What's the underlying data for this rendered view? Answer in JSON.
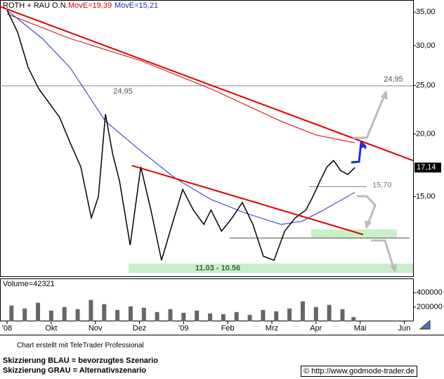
{
  "chart_data": {
    "type": "line",
    "title": "ROTH + RAU O.N.",
    "log_scale": true,
    "color": "#000000",
    "x": [
      0,
      0.24,
      0.48,
      0.72,
      0.96,
      1.19,
      1.43,
      1.67,
      1.91,
      2.07,
      2.23,
      2.39,
      2.55,
      2.79,
      3.03,
      3.26,
      3.5,
      3.74,
      3.98,
      4.22,
      4.46,
      4.62,
      4.86,
      5.1,
      5.33,
      5.57,
      5.81,
      6.05,
      6.29,
      6.53,
      6.77,
      6.93,
      7.09,
      7.25,
      7.4,
      7.56,
      7.72,
      7.88
    ],
    "values": [
      35.3,
      31.9,
      27.1,
      24.6,
      23.0,
      21.6,
      19.2,
      17.2,
      13.6,
      15.0,
      21.9,
      18.3,
      16.1,
      12.0,
      17.2,
      14.1,
      11.2,
      13.2,
      15.5,
      14.1,
      13.2,
      14.1,
      12.8,
      13.6,
      14.6,
      13.2,
      11.4,
      11.2,
      12.8,
      13.6,
      14.1,
      15.0,
      16.1,
      17.2,
      17.7,
      16.9,
      16.6,
      17.14
    ],
    "series": [
      {
        "name": "MovE=19,39",
        "color": "#d40000",
        "x": [
          0,
          1.43,
          3.03,
          4.62,
          6.21,
          7.01,
          7.88
        ],
        "values": [
          34.7,
          31.0,
          28.0,
          24.6,
          21.2,
          19.9,
          19.2
        ]
      },
      {
        "name": "MovE=15,21",
        "color": "#1c2fc0",
        "x": [
          0,
          0.8,
          1.43,
          2.23,
          3.03,
          3.82,
          4.62,
          5.41,
          6.21,
          6.69,
          7.17,
          7.88
        ],
        "values": [
          35.3,
          31.0,
          27.1,
          21.2,
          18.5,
          16.3,
          14.8,
          13.9,
          13.2,
          13.4,
          14.1,
          15.3
        ]
      }
    ],
    "xlim": [
      -0.16,
      9.2
    ],
    "xticks": [
      {
        "value": 0,
        "label": "'08"
      },
      {
        "value": 1,
        "label": "Okt"
      },
      {
        "value": 2,
        "label": "Nov"
      },
      {
        "value": 3,
        "label": "Dez"
      },
      {
        "value": 4,
        "label": "'09"
      },
      {
        "value": 5,
        "label": "Feb"
      },
      {
        "value": 6,
        "label": "Mrz"
      },
      {
        "value": 7,
        "label": "Apr"
      },
      {
        "value": 8,
        "label": "Mai"
      },
      {
        "value": 9,
        "label": "Jun"
      }
    ],
    "ylim": [
      10.4,
      37
    ],
    "yticks": [
      {
        "value": 15,
        "label": "15,00"
      },
      {
        "value": 20,
        "label": "20,00"
      },
      {
        "value": 25,
        "label": "25,00"
      },
      {
        "value": 30,
        "label": "30,00"
      },
      {
        "value": 35,
        "label": "35,00"
      }
    ],
    "last_price": {
      "value": 17.14,
      "label": "17,14"
    },
    "levels": [
      {
        "value": 24.95,
        "label": "24,95"
      },
      {
        "value": 15.7,
        "label": "15,70"
      }
    ],
    "trendlines": [
      {
        "x": [
          -0.16,
          9.2
        ],
        "values": [
          35.9,
          17.7
        ]
      },
      {
        "x": [
          2.83,
          8.07
        ],
        "values": [
          17.3,
          12.6
        ]
      }
    ],
    "zones": [
      {
        "label": "11.03 - 10.56",
        "top": 11.03,
        "bottom": 10.56
      },
      {
        "top": 12.9,
        "bottom": 12.4
      }
    ],
    "volume": {
      "label": "Volume=42321",
      "x": [
        0.1,
        0.4,
        0.7,
        1.0,
        1.3,
        1.6,
        1.9,
        2.2,
        2.5,
        2.8,
        3.1,
        3.4,
        3.7,
        4.0,
        4.3,
        4.6,
        4.9,
        5.2,
        5.5,
        5.8,
        6.1,
        6.4,
        6.7,
        7.0,
        7.3,
        7.6,
        7.85
      ],
      "values": [
        220000,
        180000,
        260000,
        150000,
        200000,
        170000,
        300000,
        240000,
        160000,
        210000,
        190000,
        130000,
        170000,
        120000,
        150000,
        110000,
        100000,
        130000,
        90000,
        160000,
        140000,
        180000,
        280000,
        200000,
        230000,
        170000,
        60000
      ],
      "ylim": [
        0,
        590000
      ],
      "yticks": [
        400000,
        200000
      ]
    }
  },
  "footer": {
    "credit": "Chart erstellt mit TeleTrader Professional",
    "legend_blue": "Skizzierung BLAU = bevorzugtes Szenario",
    "legend_gray": "Skizzierung GRAU = Alternativszenario",
    "url": "© http://www.godmode-trader.de"
  }
}
